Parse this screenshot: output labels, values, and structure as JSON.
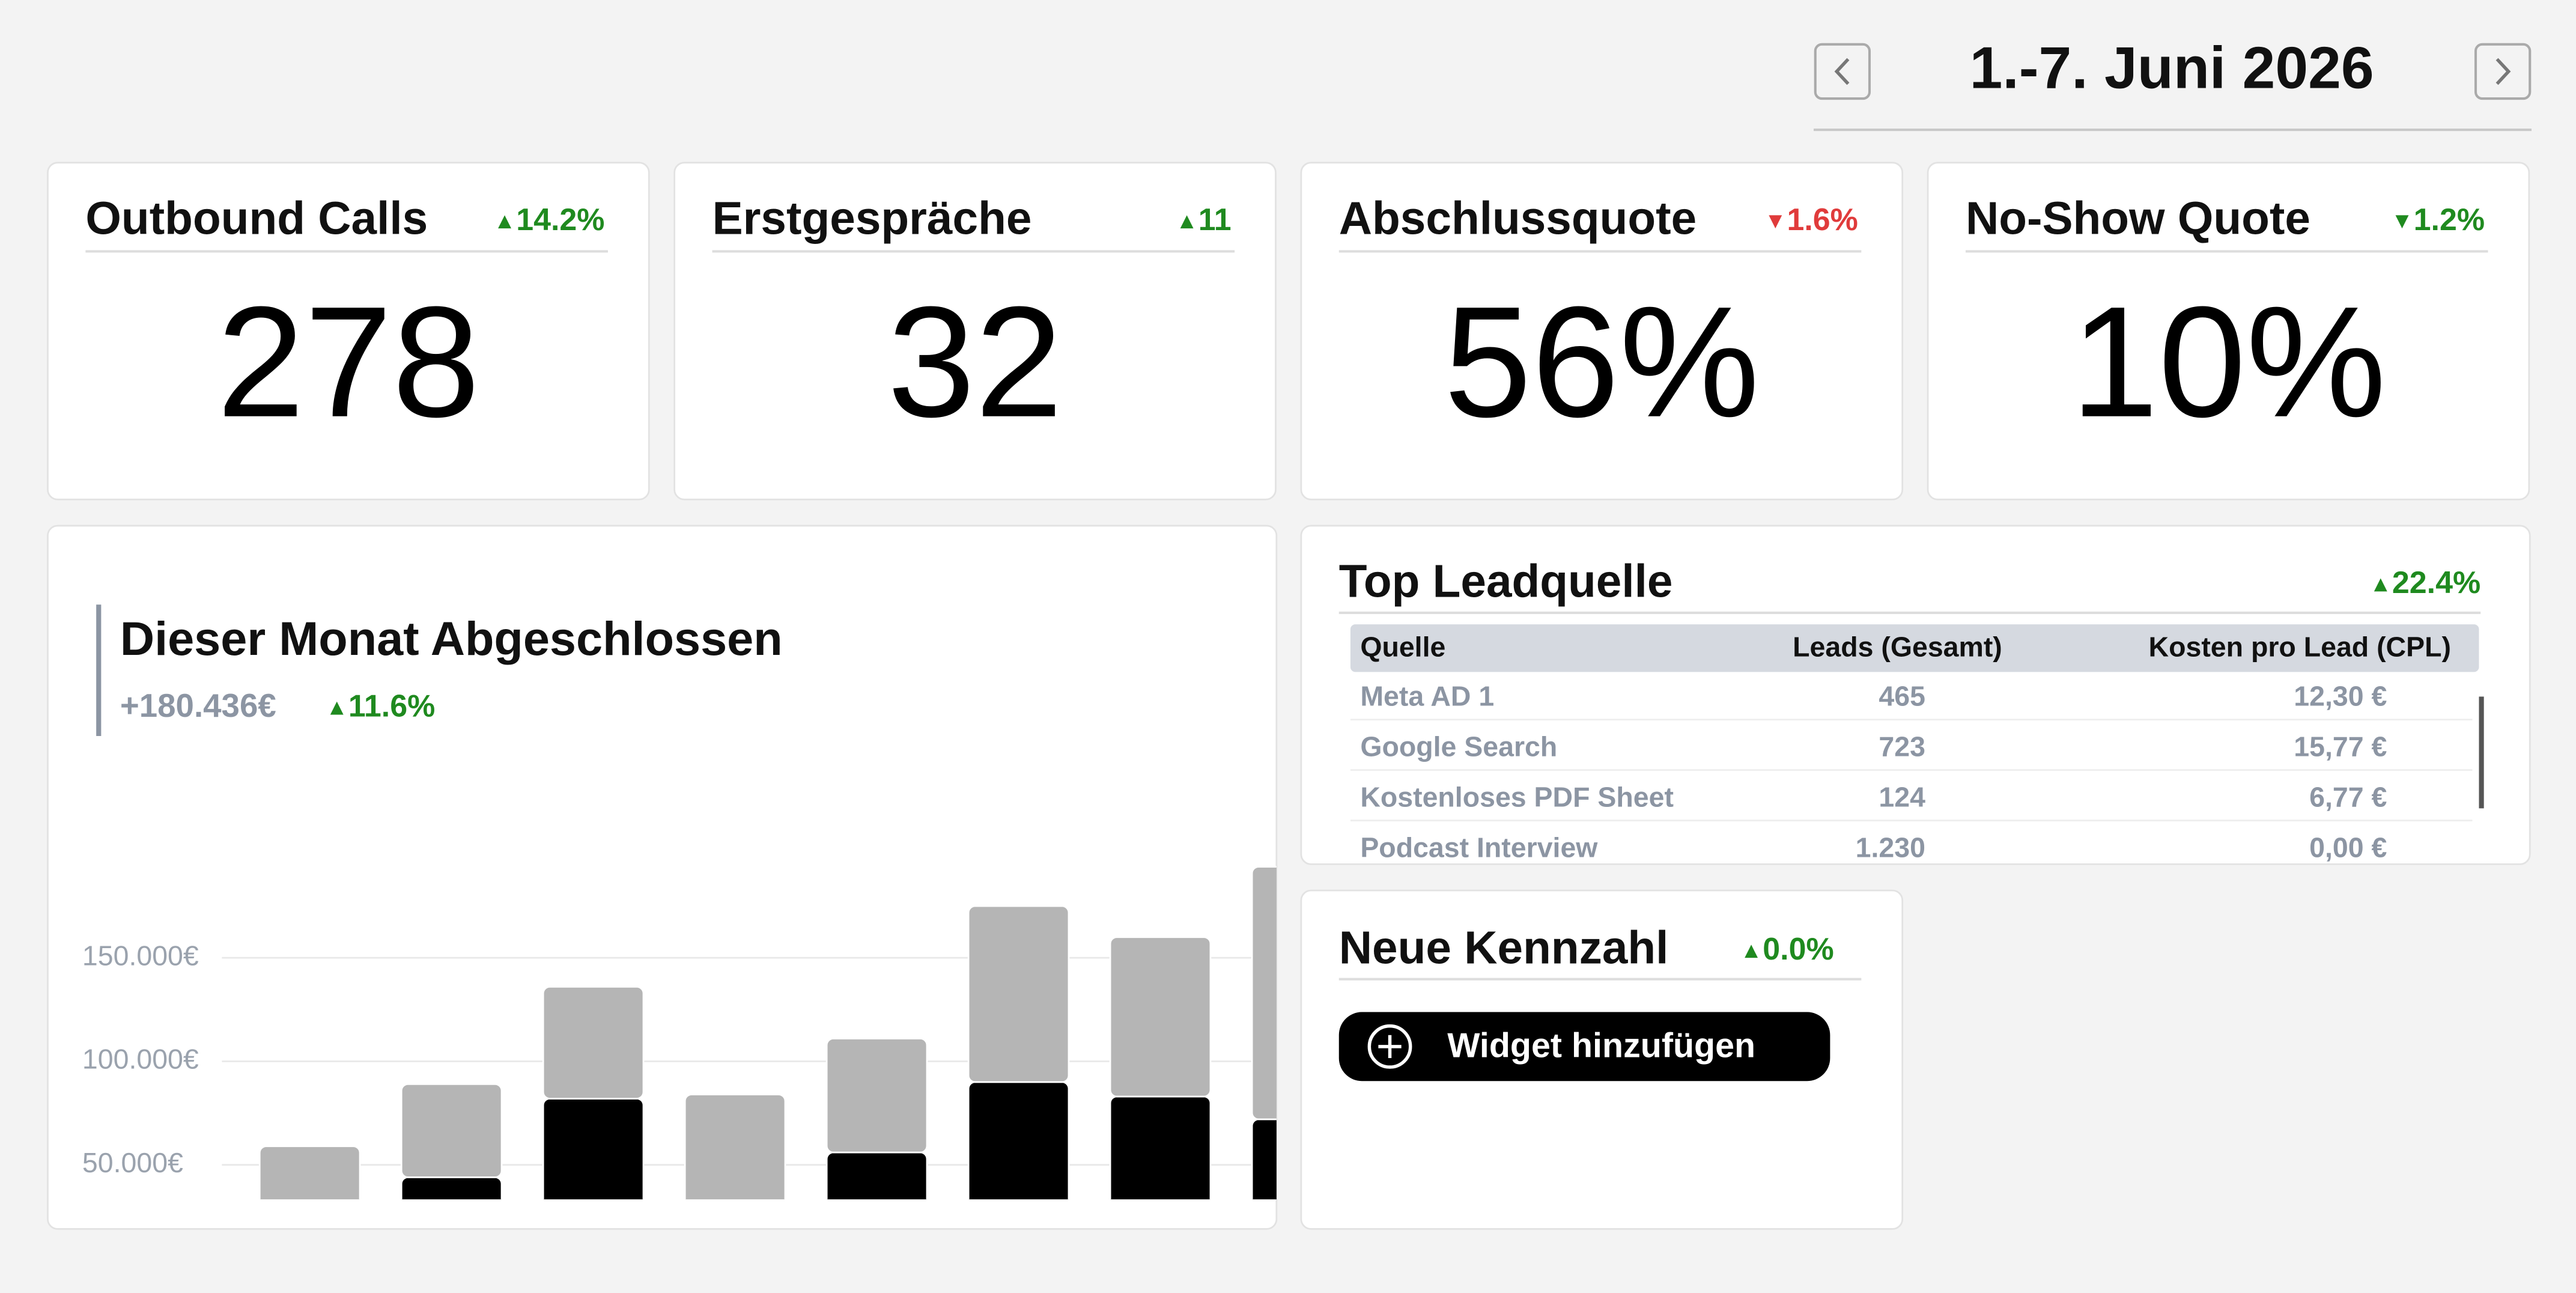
{
  "header": {
    "date": "1.-7. Juni 2026"
  },
  "kpis": [
    {
      "title": "Outbound Calls",
      "change": "14.2%",
      "trend": "up",
      "color": "#1f8a1f",
      "value": "278"
    },
    {
      "title": "Erstgespräche",
      "change": "11",
      "trend": "up",
      "color": "#1f8a1f",
      "value": "32"
    },
    {
      "title": "Abschlussquote",
      "change": "1.6%",
      "trend": "down",
      "color": "#e03b3b",
      "value": "56%"
    },
    {
      "title": "No-Show Quote",
      "change": "1.2%",
      "trend": "down",
      "color": "#1f8a1f",
      "value": "10%"
    }
  ],
  "revenue": {
    "title": "Dieser Monat Abgeschlossen",
    "amount": "+180.436€",
    "change": "11.6%",
    "trend": "up",
    "color": "#1f8a1f"
  },
  "chart_data": {
    "type": "bar",
    "stacked": true,
    "categories": [
      null,
      null,
      null,
      null,
      null,
      null,
      null,
      null
    ],
    "series": [
      {
        "color": "#000000",
        "values": [
          0,
          44000,
          82000,
          0,
          56000,
          90000,
          83000,
          72000
        ]
      },
      {
        "color": "#b5b5b5",
        "values": [
          59000,
          45000,
          54000,
          84000,
          55000,
          85000,
          77000,
          122000
        ]
      }
    ],
    "ylim": [
      0,
      240000
    ],
    "yticks": [
      {
        "value": 50000,
        "label": "50.000€"
      },
      {
        "value": 100000,
        "label": "100.000€"
      },
      {
        "value": 150000,
        "label": "150.000€"
      }
    ],
    "grid": true
  },
  "leads": {
    "title": "Top Leadquelle",
    "change": "22.4%",
    "trend": "up",
    "color": "#1f8a1f",
    "columns": [
      "Quelle",
      "Leads (Gesamt)",
      "Kosten pro Lead (CPL)"
    ],
    "rows": [
      [
        "Meta AD 1",
        "465",
        "12,30 €"
      ],
      [
        "Google Search",
        "723",
        "15,77 €"
      ],
      [
        "Kostenloses PDF Sheet",
        "124",
        "6,77 €"
      ],
      [
        "Podcast Interview",
        "1.230",
        "0,00 €"
      ]
    ]
  },
  "widget": {
    "title": "Neue Kennzahl",
    "change": "0.0%",
    "trend": "up",
    "color": "#1f8a1f",
    "button": "Widget hinzufügen"
  }
}
